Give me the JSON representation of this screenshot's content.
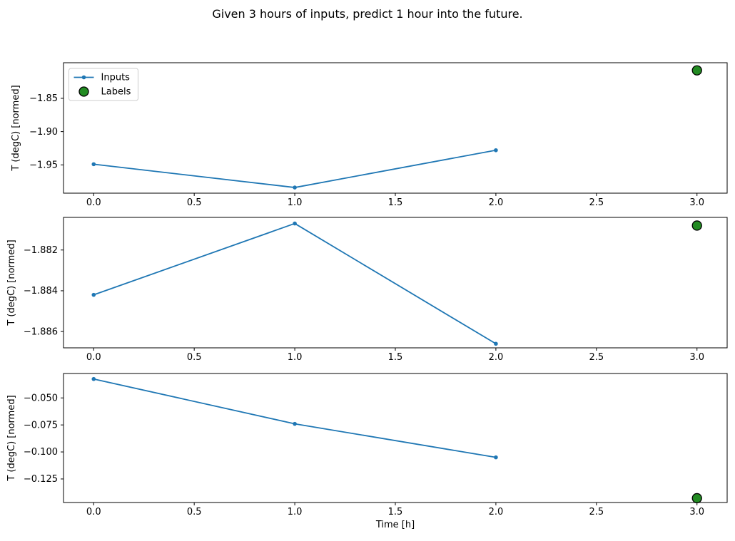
{
  "figure": {
    "title": "Given 3 hours of inputs, predict 1 hour into the future."
  },
  "legend": {
    "items": [
      {
        "name": "inputs-line-sample",
        "label": "Inputs"
      },
      {
        "name": "labels-marker-sample",
        "label": "Labels"
      }
    ]
  },
  "chart_data": {
    "type": "line",
    "description": "Three stacked time-series subplots; blue 'Inputs' line with dot markers over hours 0-2 and one green 'Labels' scatter point at hour 3",
    "xlabel": "Time [h]",
    "x_inputs": [
      0.0,
      1.0,
      2.0
    ],
    "x_label_point": 3.0,
    "xlim": [
      -0.15,
      3.15
    ],
    "xticks": [
      0.0,
      0.5,
      1.0,
      1.5,
      2.0,
      2.5,
      3.0
    ],
    "xtick_labels": [
      "0.0",
      "0.5",
      "1.0",
      "1.5",
      "2.0",
      "2.5",
      "3.0"
    ],
    "grid": false,
    "legend_position": "upper-left-first-subplot",
    "colors": {
      "inputs": "#1f77b4",
      "labels_fill": "#228B22",
      "labels_edge": "#000000"
    },
    "subplots": [
      {
        "ylabel": "T (degC) [normed]",
        "inputs": [
          -1.949,
          -1.984,
          -1.928
        ],
        "label_point": -1.808,
        "yticks": [
          -1.85,
          -1.9,
          -1.95
        ],
        "ytick_labels": [
          "−1.85",
          "−1.90",
          "−1.95"
        ],
        "ylim": [
          -1.9925,
          -1.7965
        ]
      },
      {
        "ylabel": "T (degC) [normed]",
        "inputs": [
          -1.8842,
          -1.8807,
          -1.8866
        ],
        "label_point": -1.8808,
        "yticks": [
          -1.882,
          -1.884,
          -1.886
        ],
        "ytick_labels": [
          "−1.882",
          "−1.884",
          "−1.886"
        ],
        "ylim": [
          -1.8868,
          -1.8804
        ]
      },
      {
        "ylabel": "T (degC) [normed]",
        "inputs": [
          -0.0325,
          -0.074,
          -0.105
        ],
        "label_point": -0.1428,
        "yticks": [
          -0.05,
          -0.075,
          -0.1,
          -0.125
        ],
        "ytick_labels": [
          "−0.050",
          "−0.075",
          "−0.100",
          "−0.125"
        ],
        "ylim": [
          -0.1468,
          -0.0274
        ]
      }
    ]
  }
}
